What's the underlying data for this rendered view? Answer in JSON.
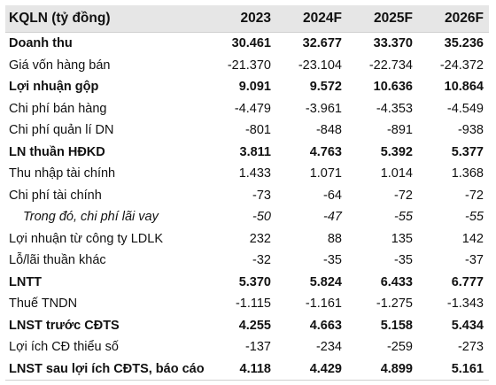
{
  "table": {
    "headers": [
      "KQLN (tỷ đồng)",
      "2023",
      "2024F",
      "2025F",
      "2026F"
    ],
    "rows": [
      {
        "label": "Doanh thu",
        "values": [
          "30.461",
          "32.677",
          "33.370",
          "35.236"
        ],
        "style": "bold"
      },
      {
        "label": "Giá vốn hàng bán",
        "values": [
          "-21.370",
          "-23.104",
          "-22.734",
          "-24.372"
        ],
        "style": "normal"
      },
      {
        "label": "Lợi nhuận gộp",
        "values": [
          "9.091",
          "9.572",
          "10.636",
          "10.864"
        ],
        "style": "bold"
      },
      {
        "label": "Chi phí bán hàng",
        "values": [
          "-4.479",
          "-3.961",
          "-4.353",
          "-4.549"
        ],
        "style": "normal"
      },
      {
        "label": "Chi phí quản lí DN",
        "values": [
          "-801",
          "-848",
          "-891",
          "-938"
        ],
        "style": "normal"
      },
      {
        "label": "LN thuần HĐKD",
        "values": [
          "3.811",
          "4.763",
          "5.392",
          "5.377"
        ],
        "style": "bold"
      },
      {
        "label": "Thu nhập tài chính",
        "values": [
          "1.433",
          "1.071",
          "1.014",
          "1.368"
        ],
        "style": "normal"
      },
      {
        "label": "Chi phí tài chính",
        "values": [
          "-73",
          "-64",
          "-72",
          "-72"
        ],
        "style": "normal"
      },
      {
        "label": "Trong đó, chi phí lãi vay",
        "values": [
          "-50",
          "-47",
          "-55",
          "-55"
        ],
        "style": "italic"
      },
      {
        "label": "Lợi nhuận từ công ty LDLK",
        "values": [
          "232",
          "88",
          "135",
          "142"
        ],
        "style": "normal"
      },
      {
        "label": "Lỗ/lãi thuần khác",
        "values": [
          "-32",
          "-35",
          "-35",
          "-37"
        ],
        "style": "normal"
      },
      {
        "label": "LNTT",
        "values": [
          "5.370",
          "5.824",
          "6.433",
          "6.777"
        ],
        "style": "bold"
      },
      {
        "label": "Thuế TNDN",
        "values": [
          "-1.115",
          "-1.161",
          "-1.275",
          "-1.343"
        ],
        "style": "normal"
      },
      {
        "label": "LNST trước CĐTS",
        "values": [
          "4.255",
          "4.663",
          "5.158",
          "5.434"
        ],
        "style": "bold"
      },
      {
        "label": "Lợi ích CĐ thiểu số",
        "values": [
          "-137",
          "-234",
          "-259",
          "-273"
        ],
        "style": "normal"
      },
      {
        "label": "LNST sau lợi ích CĐTS, báo cáo",
        "values": [
          "4.118",
          "4.429",
          "4.899",
          "5.161"
        ],
        "style": "bold"
      }
    ]
  }
}
